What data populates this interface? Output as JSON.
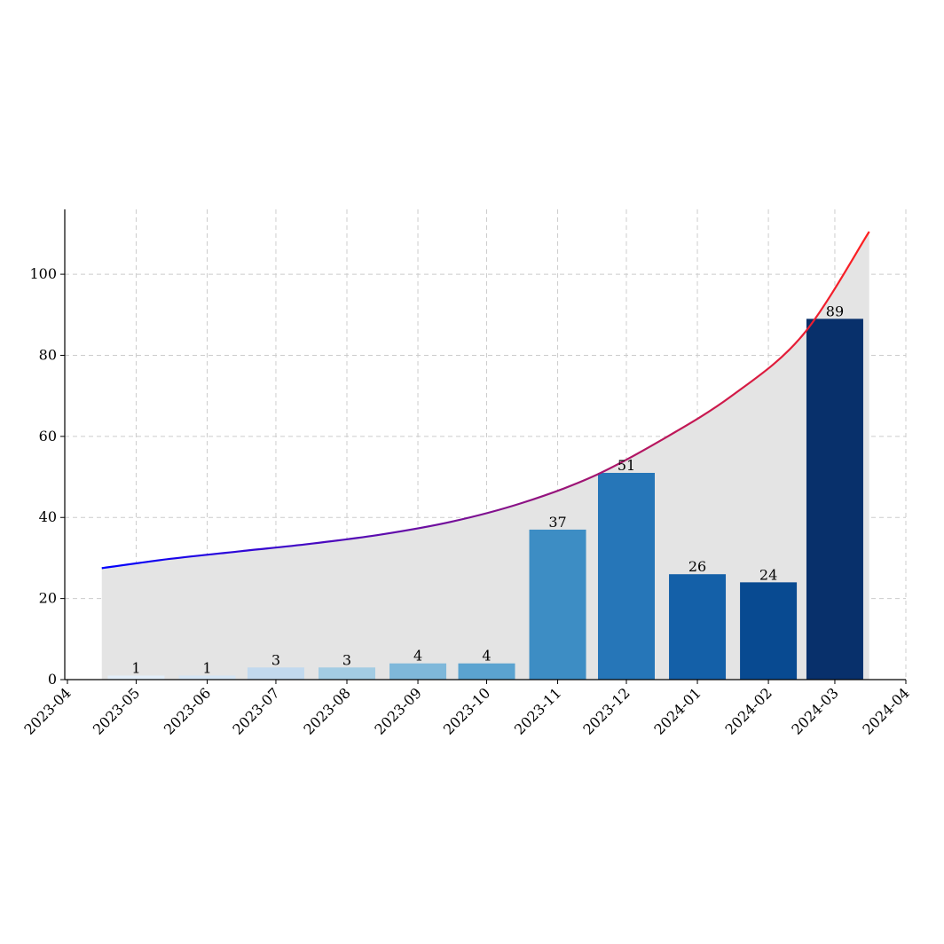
{
  "chart_data": {
    "type": "bar",
    "title": "",
    "xlabel": "",
    "ylabel": "",
    "categories": [
      "2023-05",
      "2023-06",
      "2023-07",
      "2023-08",
      "2023-09",
      "2023-10",
      "2023-11",
      "2023-12",
      "2024-01",
      "2024-02",
      "2024-03"
    ],
    "values": [
      1,
      1,
      3,
      3,
      4,
      4,
      37,
      51,
      26,
      24,
      89
    ],
    "bar_colors": [
      "#e3eef9",
      "#d5e5f4",
      "#c2d9ee",
      "#a3cce3",
      "#7fb8da",
      "#5ba3d0",
      "#3d8dc4",
      "#2676b8",
      "#1460a8",
      "#084a91",
      "#08306b"
    ],
    "trend_line": {
      "x": [
        "2023-04-16",
        "2023-05-16",
        "2023-06-16",
        "2023-07-16",
        "2023-08-16",
        "2023-09-16",
        "2023-10-16",
        "2023-11-16",
        "2023-12-16",
        "2024-01-16",
        "2024-02-16",
        "2024-03-16"
      ],
      "y": [
        27.5,
        29.8,
        31.7,
        33.5,
        35.8,
        39.0,
        43.5,
        50.0,
        59.0,
        70.0,
        85.0,
        110.5
      ],
      "color_start": "#0000ff",
      "color_end": "#ff2020",
      "fill_color": "#e4e4e4"
    },
    "x_tick_labels": [
      "2023-04",
      "2023-05",
      "2023-06",
      "2023-07",
      "2023-08",
      "2023-09",
      "2023-10",
      "2023-11",
      "2023-12",
      "2024-01",
      "2024-02",
      "2024-03",
      "2024-04"
    ],
    "y_ticks": [
      0,
      20,
      40,
      60,
      80,
      100
    ],
    "ylim": [
      0,
      116
    ],
    "grid": true
  }
}
